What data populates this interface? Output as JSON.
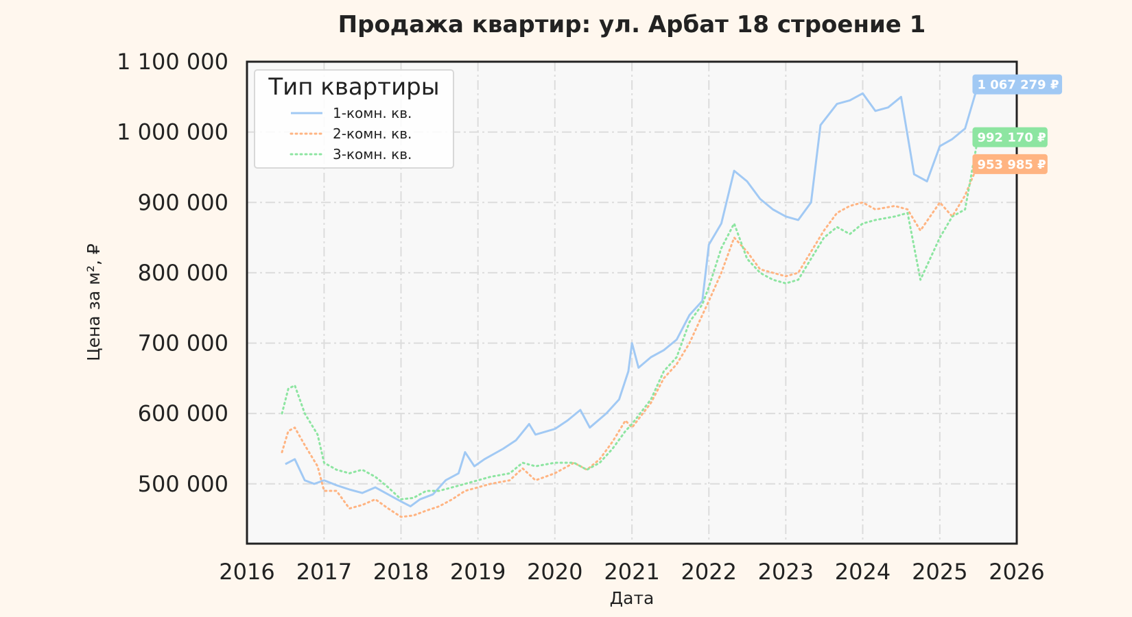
{
  "chart_data": {
    "type": "line",
    "title": "Продажа квартир: ул. Арбат 18 строение 1",
    "xlabel": "Дата",
    "ylabel": "Цена за м², ₽",
    "xlim": [
      "2016-01-01",
      "2026-01-01"
    ],
    "ylim": [
      415000,
      1100000
    ],
    "x_ticks": [
      "2016",
      "2017",
      "2018",
      "2019",
      "2020",
      "2021",
      "2022",
      "2023",
      "2024",
      "2025",
      "2026"
    ],
    "y_ticks": [
      {
        "value": 500000,
        "label": "500 000"
      },
      {
        "value": 600000,
        "label": "600 000"
      },
      {
        "value": 700000,
        "label": "700 000"
      },
      {
        "value": 800000,
        "label": "800 000"
      },
      {
        "value": 900000,
        "label": "900 000"
      },
      {
        "value": 1000000,
        "label": "1 000 000"
      },
      {
        "value": 1100000,
        "label": "1 100 000"
      }
    ],
    "grid": true,
    "legend": {
      "title": "Тип квартиры",
      "position": "top-left"
    },
    "series": [
      {
        "name": "1-комн. кв.",
        "color": "#a1c9f4",
        "style": "solid",
        "end_label": "1 067 279 ₽",
        "points": [
          [
            "2016-07-01",
            528000
          ],
          [
            "2016-08-15",
            535000
          ],
          [
            "2016-10-01",
            505000
          ],
          [
            "2016-11-15",
            500000
          ],
          [
            "2017-01-01",
            505000
          ],
          [
            "2017-03-01",
            498000
          ],
          [
            "2017-05-01",
            492000
          ],
          [
            "2017-07-01",
            487000
          ],
          [
            "2017-09-01",
            495000
          ],
          [
            "2017-11-01",
            485000
          ],
          [
            "2018-01-01",
            475000
          ],
          [
            "2018-02-15",
            468000
          ],
          [
            "2018-04-01",
            478000
          ],
          [
            "2018-06-01",
            485000
          ],
          [
            "2018-08-01",
            505000
          ],
          [
            "2018-10-01",
            515000
          ],
          [
            "2018-11-01",
            545000
          ],
          [
            "2018-12-15",
            525000
          ],
          [
            "2019-02-01",
            535000
          ],
          [
            "2019-05-01",
            550000
          ],
          [
            "2019-07-01",
            562000
          ],
          [
            "2019-09-01",
            585000
          ],
          [
            "2019-10-01",
            570000
          ],
          [
            "2020-01-01",
            578000
          ],
          [
            "2020-03-01",
            590000
          ],
          [
            "2020-05-01",
            605000
          ],
          [
            "2020-06-15",
            580000
          ],
          [
            "2020-09-01",
            600000
          ],
          [
            "2020-11-01",
            620000
          ],
          [
            "2020-12-15",
            660000
          ],
          [
            "2021-01-01",
            700000
          ],
          [
            "2021-02-01",
            665000
          ],
          [
            "2021-04-01",
            680000
          ],
          [
            "2021-06-01",
            690000
          ],
          [
            "2021-08-01",
            705000
          ],
          [
            "2021-10-01",
            740000
          ],
          [
            "2021-12-01",
            760000
          ],
          [
            "2022-01-01",
            840000
          ],
          [
            "2022-03-01",
            870000
          ],
          [
            "2022-05-01",
            945000
          ],
          [
            "2022-07-01",
            930000
          ],
          [
            "2022-09-01",
            905000
          ],
          [
            "2022-11-01",
            890000
          ],
          [
            "2023-01-01",
            880000
          ],
          [
            "2023-03-01",
            875000
          ],
          [
            "2023-05-01",
            900000
          ],
          [
            "2023-06-15",
            1010000
          ],
          [
            "2023-09-01",
            1040000
          ],
          [
            "2023-11-01",
            1045000
          ],
          [
            "2024-01-01",
            1055000
          ],
          [
            "2024-03-01",
            1030000
          ],
          [
            "2024-05-01",
            1035000
          ],
          [
            "2024-07-01",
            1050000
          ],
          [
            "2024-09-01",
            940000
          ],
          [
            "2024-11-01",
            930000
          ],
          [
            "2025-01-01",
            980000
          ],
          [
            "2025-03-01",
            990000
          ],
          [
            "2025-05-01",
            1005000
          ],
          [
            "2025-07-01",
            1067279
          ]
        ]
      },
      {
        "name": "2-комн. кв.",
        "color": "#ffb482",
        "style": "dotted",
        "end_label": "953 985 ₽",
        "points": [
          [
            "2016-06-15",
            545000
          ],
          [
            "2016-07-15",
            575000
          ],
          [
            "2016-08-15",
            580000
          ],
          [
            "2016-10-01",
            555000
          ],
          [
            "2016-12-01",
            525000
          ],
          [
            "2017-01-01",
            490000
          ],
          [
            "2017-03-01",
            490000
          ],
          [
            "2017-05-01",
            465000
          ],
          [
            "2017-07-01",
            470000
          ],
          [
            "2017-09-01",
            478000
          ],
          [
            "2017-11-01",
            465000
          ],
          [
            "2018-01-01",
            453000
          ],
          [
            "2018-03-01",
            455000
          ],
          [
            "2018-05-01",
            462000
          ],
          [
            "2018-07-01",
            468000
          ],
          [
            "2018-09-01",
            478000
          ],
          [
            "2018-11-01",
            490000
          ],
          [
            "2019-01-01",
            495000
          ],
          [
            "2019-03-01",
            500000
          ],
          [
            "2019-06-01",
            505000
          ],
          [
            "2019-08-01",
            522000
          ],
          [
            "2019-10-01",
            505000
          ],
          [
            "2020-01-01",
            515000
          ],
          [
            "2020-04-01",
            530000
          ],
          [
            "2020-06-01",
            520000
          ],
          [
            "2020-08-01",
            535000
          ],
          [
            "2020-10-01",
            560000
          ],
          [
            "2020-12-01",
            590000
          ],
          [
            "2021-01-01",
            580000
          ],
          [
            "2021-04-01",
            615000
          ],
          [
            "2021-06-01",
            650000
          ],
          [
            "2021-08-01",
            670000
          ],
          [
            "2021-10-01",
            700000
          ],
          [
            "2021-12-01",
            740000
          ],
          [
            "2022-01-01",
            760000
          ],
          [
            "2022-03-01",
            800000
          ],
          [
            "2022-05-01",
            850000
          ],
          [
            "2022-07-01",
            830000
          ],
          [
            "2022-09-01",
            805000
          ],
          [
            "2022-11-01",
            800000
          ],
          [
            "2023-01-01",
            795000
          ],
          [
            "2023-03-01",
            800000
          ],
          [
            "2023-05-01",
            830000
          ],
          [
            "2023-07-01",
            860000
          ],
          [
            "2023-09-01",
            885000
          ],
          [
            "2023-11-01",
            895000
          ],
          [
            "2024-01-01",
            900000
          ],
          [
            "2024-03-01",
            890000
          ],
          [
            "2024-06-01",
            895000
          ],
          [
            "2024-08-01",
            890000
          ],
          [
            "2024-10-01",
            860000
          ],
          [
            "2025-01-01",
            900000
          ],
          [
            "2025-03-01",
            880000
          ],
          [
            "2025-05-01",
            910000
          ],
          [
            "2025-07-01",
            953985
          ]
        ]
      },
      {
        "name": "3-комн. кв.",
        "color": "#8de5a1",
        "style": "dotted",
        "end_label": "992 170 ₽",
        "points": [
          [
            "2016-06-15",
            600000
          ],
          [
            "2016-07-15",
            635000
          ],
          [
            "2016-08-15",
            640000
          ],
          [
            "2016-10-01",
            600000
          ],
          [
            "2016-12-01",
            570000
          ],
          [
            "2017-01-01",
            530000
          ],
          [
            "2017-03-01",
            520000
          ],
          [
            "2017-05-01",
            515000
          ],
          [
            "2017-07-01",
            520000
          ],
          [
            "2017-09-01",
            510000
          ],
          [
            "2017-11-01",
            495000
          ],
          [
            "2018-01-01",
            478000
          ],
          [
            "2018-03-01",
            480000
          ],
          [
            "2018-05-01",
            490000
          ],
          [
            "2018-07-01",
            490000
          ],
          [
            "2018-09-01",
            495000
          ],
          [
            "2018-11-01",
            500000
          ],
          [
            "2019-01-01",
            505000
          ],
          [
            "2019-03-01",
            510000
          ],
          [
            "2019-06-01",
            515000
          ],
          [
            "2019-08-01",
            530000
          ],
          [
            "2019-10-01",
            525000
          ],
          [
            "2020-01-01",
            530000
          ],
          [
            "2020-04-01",
            530000
          ],
          [
            "2020-06-01",
            520000
          ],
          [
            "2020-08-01",
            530000
          ],
          [
            "2020-10-01",
            550000
          ],
          [
            "2020-12-01",
            575000
          ],
          [
            "2021-01-01",
            585000
          ],
          [
            "2021-04-01",
            620000
          ],
          [
            "2021-06-01",
            660000
          ],
          [
            "2021-08-01",
            680000
          ],
          [
            "2021-10-01",
            730000
          ],
          [
            "2021-12-01",
            755000
          ],
          [
            "2022-01-01",
            780000
          ],
          [
            "2022-03-01",
            835000
          ],
          [
            "2022-05-01",
            870000
          ],
          [
            "2022-07-01",
            820000
          ],
          [
            "2022-09-01",
            800000
          ],
          [
            "2022-11-01",
            790000
          ],
          [
            "2023-01-01",
            785000
          ],
          [
            "2023-03-01",
            790000
          ],
          [
            "2023-05-01",
            820000
          ],
          [
            "2023-07-01",
            850000
          ],
          [
            "2023-09-01",
            865000
          ],
          [
            "2023-11-01",
            855000
          ],
          [
            "2024-01-01",
            870000
          ],
          [
            "2024-03-01",
            875000
          ],
          [
            "2024-06-01",
            880000
          ],
          [
            "2024-08-01",
            885000
          ],
          [
            "2024-10-01",
            790000
          ],
          [
            "2025-01-01",
            850000
          ],
          [
            "2025-03-01",
            880000
          ],
          [
            "2025-05-01",
            890000
          ],
          [
            "2025-07-01",
            992170
          ]
        ]
      }
    ]
  }
}
